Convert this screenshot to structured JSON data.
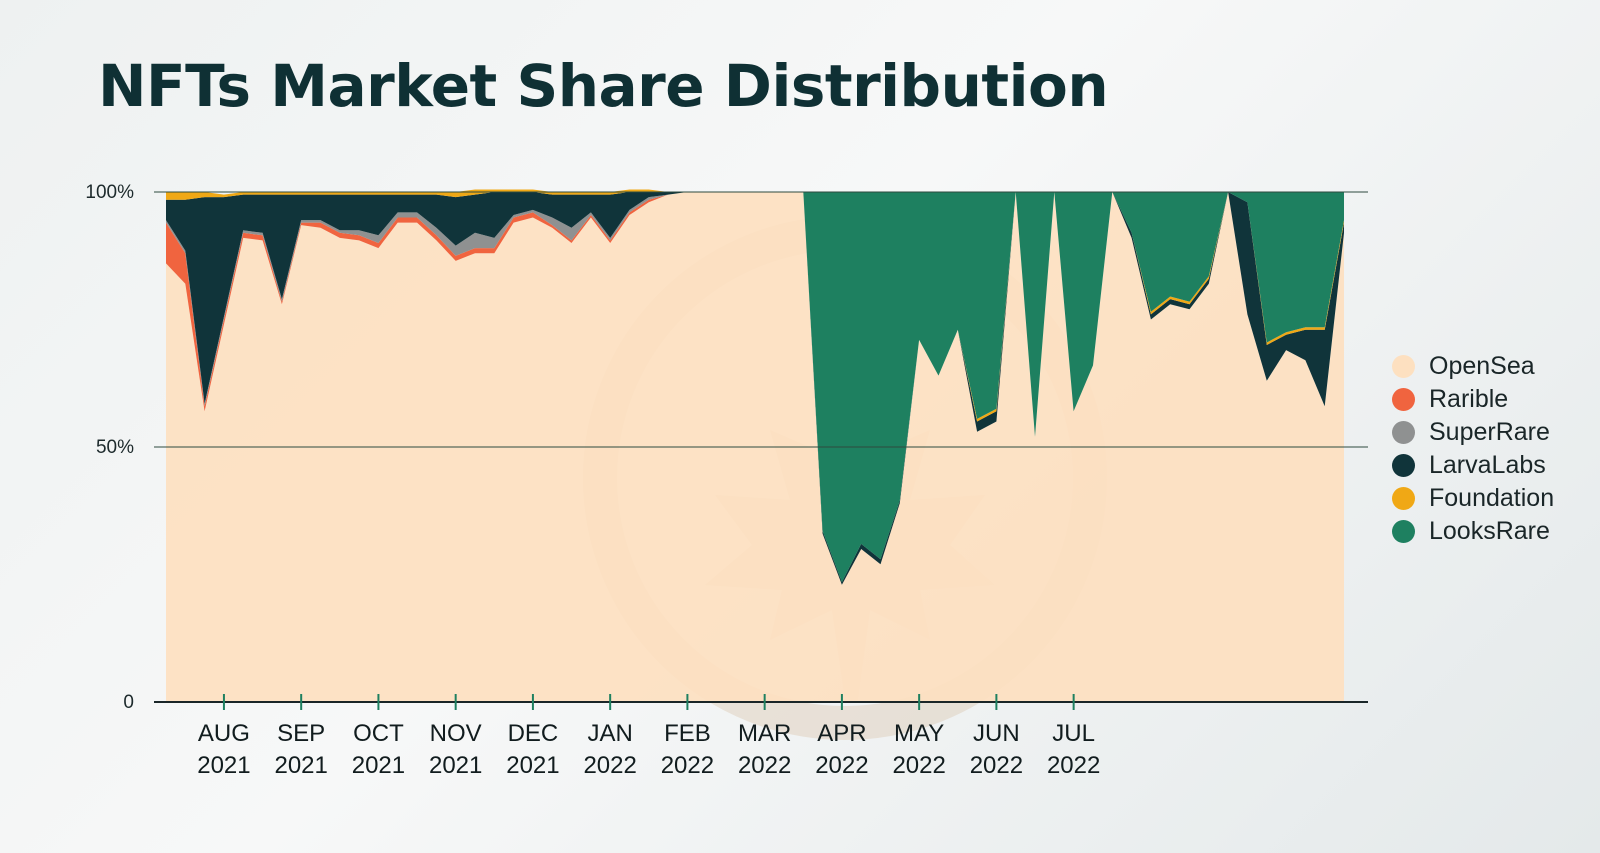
{
  "chart_data": {
    "type": "area",
    "stacked": true,
    "title": "NFTs Market Share Distribution",
    "xlabel": "",
    "ylabel": "",
    "ylim": [
      0,
      100
    ],
    "yticks": [
      {
        "value": 0,
        "label": "0"
      },
      {
        "value": 50,
        "label": "50%"
      },
      {
        "value": 100,
        "label": "100%"
      }
    ],
    "xticks": [
      {
        "index": 3,
        "month": "AUG",
        "year": "2021"
      },
      {
        "index": 7,
        "month": "SEP",
        "year": "2021"
      },
      {
        "index": 11,
        "month": "OCT",
        "year": "2021"
      },
      {
        "index": 15,
        "month": "NOV",
        "year": "2021"
      },
      {
        "index": 19,
        "month": "DEC",
        "year": "2021"
      },
      {
        "index": 23,
        "month": "JAN",
        "year": "2022"
      },
      {
        "index": 27,
        "month": "FEB",
        "year": "2022"
      },
      {
        "index": 31,
        "month": "MAR",
        "year": "2022"
      },
      {
        "index": 35,
        "month": "APR",
        "year": "2022"
      },
      {
        "index": 39,
        "month": "MAY",
        "year": "2022"
      },
      {
        "index": 43,
        "month": "JUN",
        "year": "2022"
      },
      {
        "index": 47,
        "month": "JUL",
        "year": "2022"
      }
    ],
    "legend_position": "right",
    "series": [
      {
        "name": "OpenSea",
        "color": "#fde0c0",
        "values": [
          86,
          82,
          57,
          74,
          91,
          90.5,
          78,
          93.5,
          93,
          91,
          90.5,
          89,
          94,
          94,
          90.5,
          86.5,
          88,
          88,
          94,
          95,
          93,
          90,
          95,
          90,
          95.5,
          98,
          99.5,
          100,
          100,
          100,
          100,
          100,
          100,
          100,
          33,
          23,
          30,
          27,
          39,
          71,
          64,
          73,
          53,
          55,
          100,
          52,
          100,
          57,
          66,
          100,
          91,
          75,
          78,
          77,
          82,
          100,
          76,
          63,
          69,
          67,
          58,
          92
        ]
      },
      {
        "name": "Rarible",
        "color": "#f0643f",
        "values": [
          8,
          6,
          1,
          1,
          1,
          1,
          0.5,
          0.5,
          1,
          1,
          1,
          1,
          1,
          1,
          1,
          1,
          1,
          1,
          1,
          1,
          0.5,
          0.5,
          0.5,
          0.5,
          0.5,
          0.5,
          0,
          0,
          0,
          0,
          0,
          0,
          0,
          0,
          0,
          0,
          0,
          0,
          0,
          0,
          0,
          0,
          0,
          0,
          0,
          0,
          0,
          0,
          0,
          0,
          0,
          0,
          0,
          0,
          0,
          0,
          0,
          0,
          0,
          0,
          0,
          0
        ]
      },
      {
        "name": "SuperRare",
        "color": "#8f9191",
        "values": [
          0.5,
          0.5,
          0.5,
          0.5,
          0.5,
          0.5,
          0.5,
          0.5,
          0.5,
          0.5,
          1,
          1.5,
          1,
          1,
          1.5,
          2,
          3,
          2,
          0.5,
          0.5,
          1.5,
          2.5,
          0.5,
          0.5,
          0.5,
          0.5,
          0,
          0,
          0,
          0,
          0,
          0,
          0,
          0,
          0,
          0,
          0,
          0,
          0,
          0,
          0,
          0,
          0,
          0,
          0,
          0,
          0,
          0,
          0,
          0,
          0,
          0,
          0,
          0,
          0,
          0,
          0,
          0,
          0,
          0,
          0,
          0
        ]
      },
      {
        "name": "LarvaLabs",
        "color": "#10343a",
        "values": [
          4,
          10,
          40.5,
          23.5,
          7,
          7.5,
          20.5,
          5,
          5,
          7,
          7,
          8,
          3.5,
          3.5,
          6.5,
          9.5,
          7.5,
          9,
          4.5,
          3.5,
          4.5,
          6.5,
          3.5,
          8.5,
          3.5,
          1,
          0.5,
          0,
          0,
          0,
          0,
          0,
          0,
          0,
          0.5,
          0.5,
          1,
          1,
          0.5,
          0,
          0,
          0,
          2,
          2,
          0,
          0,
          0,
          0,
          0,
          0,
          1,
          1,
          1,
          1,
          1,
          0,
          22,
          7,
          3,
          6,
          15,
          2
        ]
      },
      {
        "name": "Foundation",
        "color": "#f0a815",
        "values": [
          1.5,
          1.5,
          1,
          0.5,
          0.5,
          0.5,
          0.5,
          0.5,
          0.5,
          0.5,
          0.5,
          0.5,
          0.5,
          0.5,
          0.5,
          1,
          1,
          0.5,
          0.5,
          0.5,
          0.5,
          0.5,
          0.5,
          0.5,
          0.5,
          0.5,
          0,
          0,
          0,
          0,
          0,
          0,
          0,
          0,
          0,
          0,
          0,
          0,
          0,
          0,
          0,
          0,
          0.5,
          0.5,
          0,
          0,
          0,
          0,
          0,
          0,
          0,
          0.5,
          0.5,
          0.5,
          0.5,
          0,
          0,
          0.5,
          0.5,
          0.5,
          0.5,
          0.5
        ]
      },
      {
        "name": "LooksRare",
        "color": "#1e8060",
        "values": [
          0,
          0,
          0,
          0,
          0,
          0,
          0,
          0,
          0,
          0,
          0,
          0,
          0,
          0,
          0,
          0,
          0,
          0,
          0,
          0,
          0,
          0,
          0,
          0,
          0,
          0,
          0,
          0,
          0,
          0,
          0,
          0,
          0,
          0,
          66.5,
          76.5,
          69,
          72,
          60.5,
          29,
          36,
          27,
          44.5,
          42.5,
          0,
          48,
          0,
          43,
          34,
          0,
          8,
          23.5,
          20.5,
          21.5,
          16.5,
          0,
          2,
          29.5,
          27.5,
          26.5,
          26.5,
          5.5
        ]
      }
    ]
  }
}
